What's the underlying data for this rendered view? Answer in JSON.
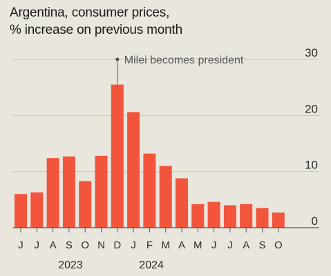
{
  "title": {
    "line1": "Argentina, consumer prices,",
    "line2": "% increase on previous month"
  },
  "colors": {
    "background": "#e9e6dd",
    "bar": "#f2553c",
    "grid": "#c9c6bd",
    "axis": "#555555",
    "annotation": "#555555"
  },
  "chart_data": {
    "type": "bar",
    "categories": [
      "J",
      "J",
      "A",
      "S",
      "O",
      "N",
      "D",
      "J",
      "F",
      "M",
      "A",
      "M",
      "J",
      "J",
      "A",
      "S",
      "O"
    ],
    "values": [
      6.0,
      6.3,
      12.4,
      12.7,
      8.3,
      12.8,
      25.5,
      20.6,
      13.2,
      11.0,
      8.8,
      4.2,
      4.6,
      4.0,
      4.2,
      3.5,
      2.7
    ],
    "years": [
      {
        "label": "2023",
        "start": 0,
        "end": 6
      },
      {
        "label": "2024",
        "start": 7,
        "end": 16
      }
    ],
    "ylim": [
      0,
      30
    ],
    "yticks": [
      0,
      10,
      20,
      30
    ],
    "grid": true,
    "annotation": {
      "label": "Milei becomes president",
      "category_index": 6
    }
  }
}
